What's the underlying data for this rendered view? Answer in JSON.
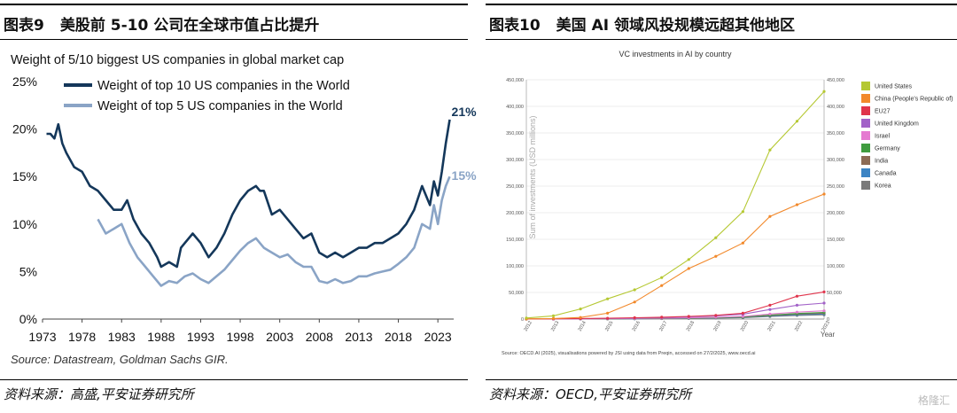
{
  "left_panel": {
    "figure_label": "图表9",
    "figure_title": "美股前 5-10 公司在全球市值占比提升",
    "source": "资料来源：高盛,平安证券研究所"
  },
  "right_panel": {
    "figure_label": "图表10",
    "figure_title": "美国 AI 领域风投规模远超其他地区",
    "source": "资料来源：OECD,平安证券研究所"
  },
  "watermark": "格隆汇",
  "chart_data": [
    {
      "type": "line",
      "title": "Weight of 5/10 biggest US companies in global market cap",
      "source_note": "Source: Datastream, Goldman Sachs GIR.",
      "x_ticks": [
        "1973",
        "1978",
        "1983",
        "1988",
        "1993",
        "1998",
        "2003",
        "2008",
        "2013",
        "2018",
        "2023"
      ],
      "y_ticks": [
        "0%",
        "5%",
        "10%",
        "15%",
        "20%",
        "25%"
      ],
      "xlim": [
        1973,
        2025
      ],
      "ylim": [
        0,
        25
      ],
      "colors": {
        "top10": "#14375a",
        "top5": "#8aa4c6"
      },
      "series": [
        {
          "name": "Weight of top 10 US companies in the World",
          "end_label": "21%",
          "x": [
            1973.5,
            1974,
            1974.5,
            1975,
            1975.5,
            1976,
            1977,
            1978,
            1979,
            1980,
            1981,
            1982,
            1983,
            1983.7,
            1984.5,
            1985.5,
            1986.5,
            1987.5,
            1988,
            1989,
            1990,
            1990.5,
            1991,
            1992,
            1993,
            1994,
            1995,
            1996,
            1997,
            1998,
            1999,
            2000,
            2000.5,
            2001,
            2002,
            2003,
            2004,
            2005,
            2006,
            2007,
            2008,
            2009,
            2010,
            2011,
            2012,
            2013,
            2014,
            2015,
            2016,
            2017,
            2018,
            2019,
            2020,
            2021,
            2022,
            2022.5,
            2023,
            2023.5,
            2024,
            2024.5
          ],
          "values": [
            19.5,
            19.5,
            19,
            20.5,
            18.5,
            17.5,
            16,
            15.5,
            14,
            13.5,
            12.5,
            11.5,
            11.5,
            12.5,
            10.5,
            9,
            8,
            6.5,
            5.5,
            6,
            5.5,
            7.5,
            8,
            9,
            8,
            6.5,
            7.5,
            9,
            11,
            12.5,
            13.5,
            14,
            13.5,
            13.5,
            11,
            11.5,
            10.5,
            9.5,
            8.5,
            9,
            7,
            6.5,
            7,
            6.5,
            7,
            7.5,
            7.5,
            8,
            8,
            8.5,
            9,
            10,
            11.5,
            14,
            12,
            14.5,
            13,
            15.5,
            18.5,
            21
          ]
        },
        {
          "name": "Weight of top 5 US companies in the World",
          "end_label": "15%",
          "x": [
            1980,
            1981,
            1982,
            1983,
            1984,
            1985,
            1986,
            1987,
            1988,
            1989,
            1990,
            1991,
            1992,
            1993,
            1994,
            1995,
            1996,
            1997,
            1998,
            1999,
            2000,
            2001,
            2002,
            2003,
            2004,
            2005,
            2006,
            2007,
            2008,
            2009,
            2010,
            2011,
            2012,
            2013,
            2014,
            2015,
            2016,
            2017,
            2018,
            2019,
            2020,
            2021,
            2022,
            2022.5,
            2023,
            2023.5,
            2024,
            2024.5
          ],
          "values": [
            10.5,
            9,
            9.5,
            10,
            8,
            6.5,
            5.5,
            4.5,
            3.5,
            4,
            3.8,
            4.5,
            4.8,
            4.2,
            3.8,
            4.5,
            5.2,
            6.2,
            7.2,
            8,
            8.5,
            7.5,
            7,
            6.5,
            6.8,
            6,
            5.5,
            5.5,
            4,
            3.8,
            4.2,
            3.8,
            4,
            4.5,
            4.5,
            4.8,
            5,
            5.2,
            5.8,
            6.5,
            7.5,
            10,
            9.5,
            12,
            10,
            12.5,
            14,
            15
          ]
        }
      ]
    },
    {
      "type": "line",
      "title": "VC investments in AI by country",
      "ylabel": "Sum of investments (USD millions)",
      "xlabel": "Year",
      "x_ticks": [
        "2012",
        "2013",
        "2014",
        "2015",
        "2016",
        "2017",
        "2018",
        "2019",
        "2020",
        "2021",
        "2022",
        "2023"
      ],
      "y_ticks": [
        "0",
        "50,000",
        "100,000",
        "150,000",
        "200,000",
        "250,000",
        "300,000",
        "350,000",
        "400,000",
        "450,000"
      ],
      "ylim": [
        0,
        450000
      ],
      "source_note": "Source: OECD.AI (2025), visualisations powered by JSI using data from Preqin, accessed on 27/2/2025, www.oecd.ai",
      "series": [
        {
          "name": "United States",
          "color": "#b5c832",
          "values": [
            2000,
            6000,
            19000,
            38000,
            55000,
            78000,
            112000,
            153000,
            202000,
            318000,
            372000,
            428000
          ]
        },
        {
          "name": "China (People's Republic of)",
          "color": "#f2892b",
          "values": [
            300,
            1000,
            3000,
            11000,
            32000,
            63000,
            95000,
            118000,
            143000,
            193000,
            215000,
            235000
          ]
        },
        {
          "name": "EU27",
          "color": "#e0344c",
          "values": [
            200,
            500,
            1000,
            1500,
            2500,
            3500,
            5000,
            7000,
            11000,
            26000,
            43000,
            51000
          ]
        },
        {
          "name": "United Kingdom",
          "color": "#a262c8",
          "values": [
            100,
            300,
            600,
            1000,
            1800,
            2600,
            4000,
            6000,
            9000,
            18000,
            26000,
            30000
          ]
        },
        {
          "name": "Israel",
          "color": "#e57ad1",
          "values": [
            100,
            200,
            400,
            700,
            1100,
            1600,
            2400,
            3400,
            5000,
            9500,
            13000,
            15500
          ]
        },
        {
          "name": "Germany",
          "color": "#3f9c3f",
          "values": [
            50,
            150,
            300,
            550,
            900,
            1300,
            2000,
            2800,
            4000,
            7500,
            10500,
            12500
          ]
        },
        {
          "name": "India",
          "color": "#8c6b55",
          "values": [
            50,
            100,
            250,
            450,
            800,
            1200,
            1800,
            2600,
            3600,
            6800,
            9500,
            11000
          ]
        },
        {
          "name": "Canada",
          "color": "#3c84c4",
          "values": [
            50,
            100,
            200,
            400,
            650,
            1000,
            1500,
            2200,
            3100,
            5800,
            8200,
            9500
          ]
        },
        {
          "name": "Korea",
          "color": "#7a7a7a",
          "values": [
            20,
            60,
            150,
            300,
            500,
            800,
            1200,
            1800,
            2600,
            4800,
            6800,
            8000
          ]
        }
      ]
    }
  ]
}
